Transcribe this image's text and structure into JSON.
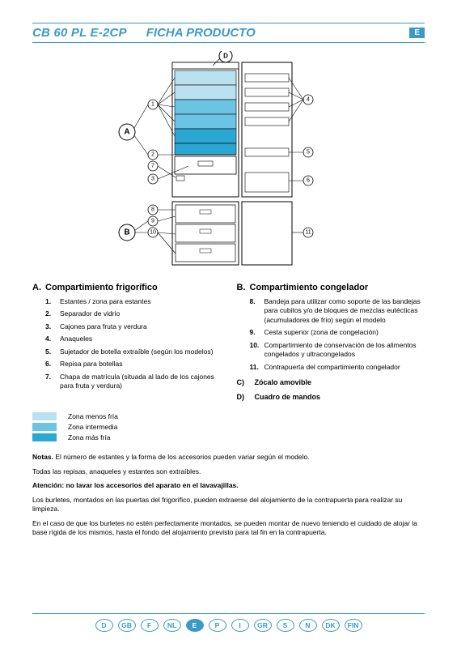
{
  "header": {
    "model": "CB 60 PL  E-2CP",
    "doc_type": "FICHA PRODUCTO",
    "lang_badge": "E"
  },
  "diagram": {
    "labels_big": {
      "A": "A",
      "B": "B",
      "D": "D"
    },
    "callouts_left": [
      "1",
      "2",
      "7",
      "3",
      "8",
      "9",
      "10"
    ],
    "callouts_right": [
      "4",
      "5",
      "6",
      "11"
    ],
    "zone_colors": {
      "less_cold": "#b9e1f0",
      "intermediate": "#6bc4e3",
      "coldest": "#2aa7d3"
    }
  },
  "sections": {
    "A": {
      "title": "Compartimiento frigorífico",
      "items": [
        "Estantes / zona para estantes",
        "Separador de vidrio",
        "Cajones para fruta y verdura",
        "Anaqueles",
        "Sujetador de botella extraíble (según los modelos)",
        "Repisa para botellas",
        "Chapa de matrícula (situada al lado de los cajones para fruta y verdura)"
      ]
    },
    "B": {
      "title": "Compartimiento congelador",
      "items": [
        "Bandeja para utilizar como soporte de las bandejas para cubitos y/o de bloques de mezclas eutécticas (acumuladores de frío) según el modelo",
        "Cesta superior (zona de congelación)",
        "Compartimiento de conservación de los alimentos congelados y ultracongelados",
        "Contrapuerta del compartimiento congelador"
      ]
    },
    "C": {
      "label": "Zócalo amovible"
    },
    "D": {
      "label": "Cuadro de mandos"
    }
  },
  "legend": {
    "rows": [
      {
        "color": "#b9e1f0",
        "label": "Zona menos fría"
      },
      {
        "color": "#6bc4e3",
        "label": "Zona intermedia"
      },
      {
        "color": "#2aa7d3",
        "label": "Zona más fría"
      }
    ]
  },
  "notes": {
    "line1_label": "Notas.",
    "line1": " El número de estantes y la forma de los accesorios pueden variar según el modelo.",
    "line2": "Todas las repisas, anaqueles y estantes son extraíbles.",
    "warn": "Atención: no lavar los accesorios del aparato en el lavavajillas.",
    "p3": "Los burletes, montados en las puertas del frigorífico, pueden extraerse del alojamiento de la contrapuerta para realizar su limpieza.",
    "p4": "En el caso de que los burletes no estén perfectamente montados, se pueden montar de nuevo teniendo el cuidado de alojar la base rígida de los mismos, hasta el fondo del alojamiento previsto para tal fin en la contrapuerta."
  },
  "footer_langs": [
    "D",
    "GB",
    "F",
    "NL",
    "E",
    "P",
    "I",
    "GR",
    "S",
    "N",
    "DK",
    "FIN"
  ],
  "footer_active": "E"
}
